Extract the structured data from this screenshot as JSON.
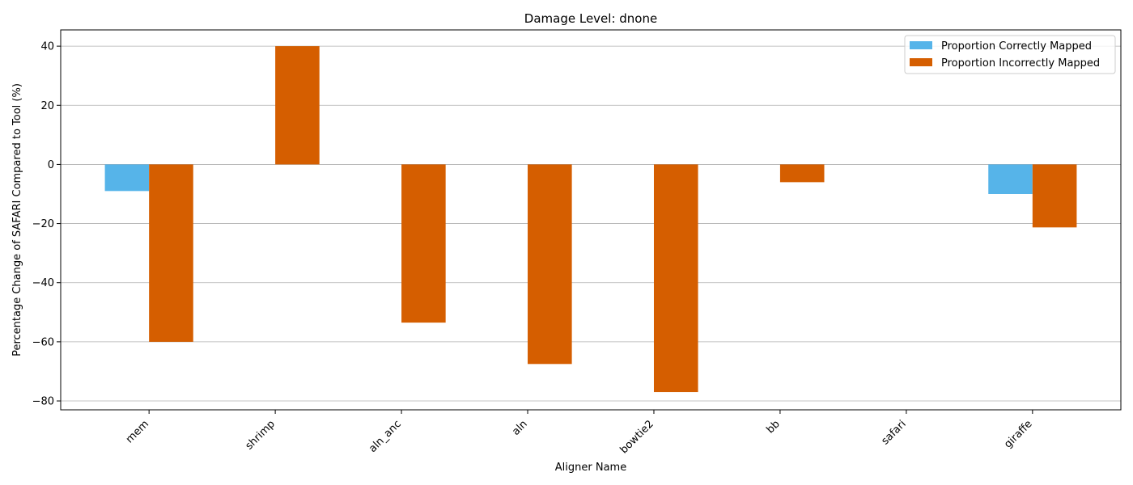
{
  "chart_data": {
    "type": "bar",
    "title": "Damage Level: dnone",
    "xlabel": "Aligner Name",
    "ylabel": "Percentage Change of SAFARI Compared to Tool (%)",
    "categories": [
      "mem",
      "shrimp",
      "aln_anc",
      "aln",
      "bowtie2",
      "bb",
      "safari",
      "giraffe"
    ],
    "series": [
      {
        "name": "Proportion Correctly Mapped",
        "color": "#56b4e9",
        "values": [
          -9,
          0,
          0,
          0,
          0,
          0,
          0,
          -10
        ]
      },
      {
        "name": "Proportion Incorrectly Mapped",
        "color": "#d55e00",
        "values": [
          -60,
          40,
          -53.5,
          -67.5,
          -77,
          -6,
          0,
          -21.3
        ]
      }
    ],
    "ylim": [
      -83,
      45.5
    ],
    "yticks": [
      40,
      20,
      0,
      -20,
      -40,
      -60,
      -80
    ],
    "ytick_labels": [
      "40",
      "20",
      "0",
      "−20",
      "−40",
      "−60",
      "−80"
    ],
    "grid": "y",
    "legend_position": "top-right"
  }
}
